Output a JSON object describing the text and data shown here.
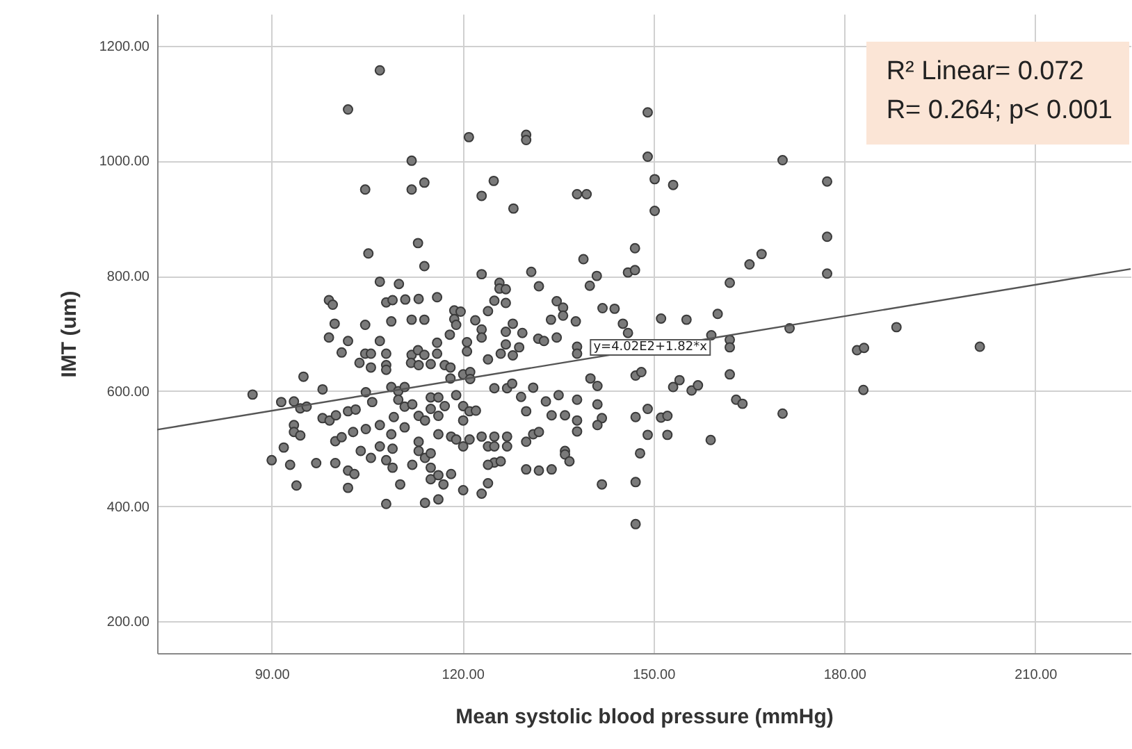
{
  "chart_data": {
    "type": "scatter",
    "xlabel": "Mean systolic blood pressure (mmHg)",
    "ylabel": "IMT (um)",
    "xlim": [
      72,
      225
    ],
    "ylim": [
      145,
      1255
    ],
    "xticks": [
      {
        "value": 90,
        "label": "90.00"
      },
      {
        "value": 120,
        "label": "120.00"
      },
      {
        "value": 150,
        "label": "150.00"
      },
      {
        "value": 180,
        "label": "180.00"
      },
      {
        "value": 210,
        "label": "210.00"
      }
    ],
    "yticks": [
      {
        "value": 200,
        "label": "200.00"
      },
      {
        "value": 400,
        "label": "400.00"
      },
      {
        "value": 600,
        "label": "600.00"
      },
      {
        "value": 800,
        "label": "800.00"
      },
      {
        "value": 1000,
        "label": "1000.00"
      },
      {
        "value": 1200,
        "label": "1200.00"
      }
    ],
    "grid": true,
    "annotations": [
      "R² Linear= 0.072",
      "R= 0.264; p< 0.001",
      {
        "text": "y=4.02E2+1.82*x",
        "x": 149.5,
        "y": 675
      }
    ],
    "series": [
      {
        "marker": "circle",
        "color": "#7a7a7a",
        "x": [
          107.0,
          102.0,
          121.0,
          130.0,
          130.0,
          112.0,
          104.7,
          112.0,
          114.0,
          123.0,
          124.9,
          128.0,
          138.0,
          139.5,
          113.0,
          105.2,
          114.0,
          139.0,
          107.0,
          110.0,
          123.0,
          130.8,
          125.8,
          125.8,
          126.8,
          132.0,
          141.1,
          140.0,
          142.0,
          99.0,
          99.6,
          99.9,
          108.0,
          109.0,
          111.0,
          113.1,
          116.0,
          112.0,
          114.0,
          108.8,
          104.7,
          118.7,
          119.7,
          118.7,
          122.0,
          124.0,
          125.0,
          126.8,
          123.0,
          123.0,
          127.9,
          126.8,
          129.4,
          134.8,
          135.8,
          135.8,
          137.8,
          133.9,
          131.9,
          132.8,
          134.8,
          118.0,
          119.0,
          120.7,
          120.7,
          99.0,
          102.0,
          101.0,
          104.7,
          105.6,
          107.0,
          108.0,
          112.0,
          113.0,
          114.0,
          116.0,
          116.0,
          124.0,
          126.0,
          126.8,
          127.9,
          128.9,
          138.0,
          138.0,
          103.8,
          105.6,
          108.0,
          108.0,
          95.0,
          111.9,
          113.1,
          115.0,
          117.2,
          118.1,
          118.1,
          120.1,
          121.2,
          121.2,
          87.0,
          98.0,
          91.5,
          93.5,
          94.5,
          95.5,
          98.0,
          99.1,
          100.1,
          102.0,
          103.2,
          93.5,
          93.5,
          94.5,
          100.0,
          101.0,
          102.8,
          104.8,
          104.8,
          105.8,
          107.0,
          108.8,
          109.9,
          110.9,
          109.9,
          110.9,
          112.1,
          113.1,
          114.1,
          110.9,
          109.2,
          108.8,
          115.0,
          116.2,
          117.2,
          116.2,
          115.0,
          116.2,
          118.2,
          119.0,
          120.1,
          121.1,
          122.1,
          120.1,
          119.0,
          120.1,
          121.1,
          123.0,
          125.0,
          124.0,
          125.0,
          127.0,
          127.0,
          125.0,
          127.0,
          127.8,
          129.2,
          130.0,
          131.1,
          133.1,
          134.0,
          135.1,
          136.1,
          138.0,
          140.1,
          141.2,
          141.2,
          141.9,
          141.2,
          138.0,
          138.0,
          136.1,
          136.1,
          136.8,
          130.0,
          131.1,
          132.0,
          125.0,
          126.0,
          124.0,
          124.0,
          123.0,
          130.0,
          132.0,
          134.0,
          141.9,
          90.0,
          91.9,
          92.9,
          93.9,
          97.0,
          100.0,
          102.0,
          103.0,
          102.0,
          104.0,
          105.6,
          107.0,
          108.0,
          109.0,
          109.0,
          110.2,
          108.0,
          112.1,
          113.1,
          113.1,
          114.1,
          115.0,
          115.0,
          115.0,
          116.2,
          117.0,
          118.2,
          114.1,
          116.2,
          120.1,
          147.2,
          147.2,
          147.2,
          147.9,
          147.2,
          149.1,
          151.2,
          152.2,
          149.1,
          152.2,
          148.1,
          153.1,
          154.1,
          156.0,
          157.0,
          159.0,
          162.0,
          163.0,
          164.0,
          170.3,
          183.0,
          182.0,
          183.1,
          201.3,
          149.1,
          149.1,
          150.2,
          153.1,
          150.2,
          170.3,
          177.3,
          177.3,
          177.3,
          147.1,
          146.0,
          147.1,
          162.0,
          165.1,
          167.0,
          151.2,
          155.2,
          160.1,
          171.4,
          188.2,
          143.9,
          145.2,
          146.0,
          159.1,
          162.0,
          162.0
        ],
        "values": [
          1157,
          1089,
          1041,
          1045,
          1036,
          1000,
          950,
          950,
          962,
          939,
          965,
          917,
          942,
          942,
          857,
          839,
          817,
          829,
          790,
          786,
          803,
          807,
          788,
          778,
          777,
          782,
          800,
          783,
          744,
          758,
          750,
          717,
          754,
          758,
          759,
          760,
          763,
          724,
          724,
          721,
          715,
          740,
          738,
          725,
          723,
          739,
          757,
          753,
          707,
          693,
          717,
          703,
          701,
          756,
          745,
          731,
          721,
          724,
          691,
          687,
          693,
          698,
          715,
          685,
          669,
          693,
          687,
          667,
          665,
          665,
          687,
          665,
          663,
          671,
          663,
          684,
          665,
          655,
          665,
          681,
          662,
          676,
          677,
          665,
          649,
          641,
          645,
          637,
          625,
          649,
          645,
          647,
          645,
          641,
          622,
          629,
          633,
          621,
          594,
          603,
          581,
          582,
          570,
          573,
          553,
          549,
          558,
          565,
          568,
          541,
          529,
          523,
          513,
          520,
          529,
          534,
          598,
          581,
          541,
          607,
          600,
          607,
          585,
          573,
          577,
          557,
          549,
          537,
          555,
          525,
          589,
          589,
          574,
          557,
          569,
          525,
          521,
          593,
          574,
          565,
          566,
          549,
          516,
          504,
          516,
          521,
          521,
          504,
          504,
          521,
          504,
          605,
          605,
          613,
          590,
          565,
          606,
          582,
          558,
          593,
          558,
          585,
          622,
          609,
          577,
          553,
          541,
          549,
          530,
          496,
          490,
          478,
          512,
          525,
          529,
          476,
          478,
          472,
          440,
          422,
          464,
          462,
          464,
          438,
          480,
          502,
          472,
          436,
          475,
          475,
          462,
          456,
          432,
          496,
          484,
          504,
          480,
          467,
          500,
          438,
          404,
          472,
          512,
          496,
          484,
          492,
          467,
          447,
          454,
          438,
          456,
          406,
          412,
          428,
          555,
          442,
          369,
          492,
          627,
          569,
          554,
          557,
          524,
          524,
          633,
          607,
          619,
          601,
          610,
          515,
          629,
          585,
          578,
          561,
          602,
          671,
          675,
          677,
          1084,
          1007,
          968,
          958,
          913,
          1001,
          964,
          868,
          804,
          848,
          806,
          810,
          788,
          820,
          838,
          726,
          724,
          734,
          709,
          711,
          743,
          717,
          701,
          697,
          689,
          676
        ]
      },
      {
        "type": "line",
        "marker": "none",
        "color": "#555555",
        "x": [
          72,
          225
        ],
        "values": [
          533,
          812
        ]
      }
    ]
  }
}
